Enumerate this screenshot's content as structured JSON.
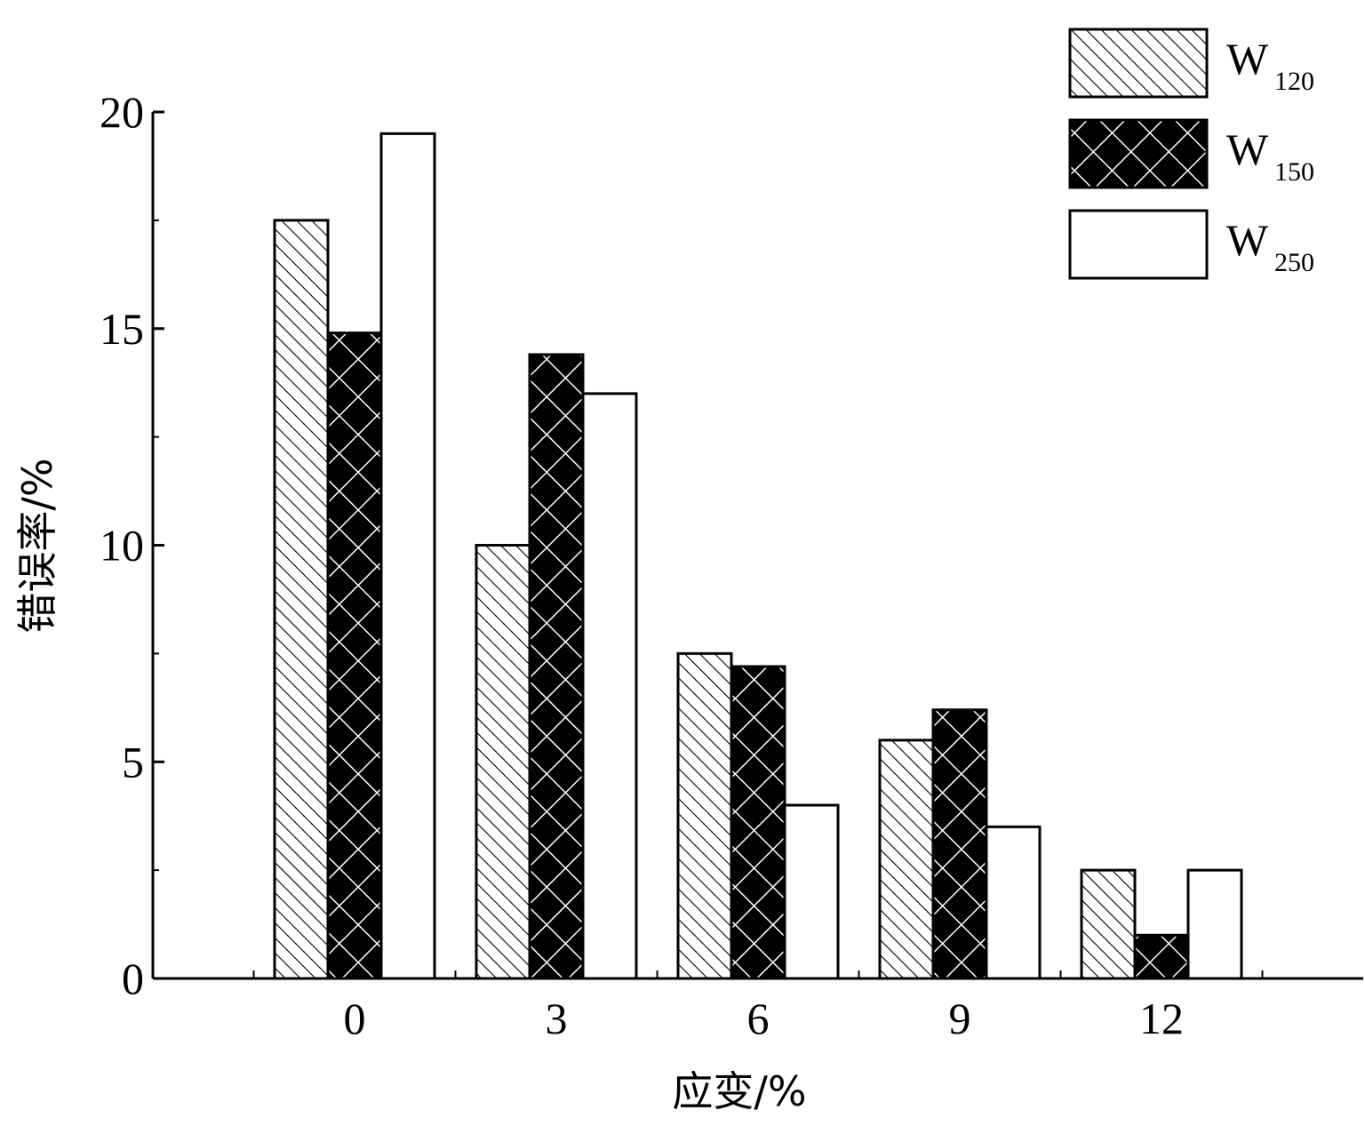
{
  "chart_data": {
    "type": "bar",
    "title": "",
    "xlabel": "应变/%",
    "ylabel": "错误率/%",
    "categories": [
      "0",
      "3",
      "6",
      "9",
      "12"
    ],
    "ylim": [
      0,
      20
    ],
    "yticks": [
      "0",
      "5",
      "10",
      "15",
      "20"
    ],
    "legend_position": "top-right",
    "grid": false,
    "series": [
      {
        "name_main": "W",
        "name_sub": "120",
        "pattern": "diagonal-hatch",
        "values": [
          17.5,
          10.0,
          7.5,
          5.5,
          2.5
        ]
      },
      {
        "name_main": "W",
        "name_sub": "150",
        "pattern": "black-crosshatch",
        "values": [
          14.9,
          14.4,
          7.2,
          6.2,
          1.0
        ]
      },
      {
        "name_main": "W",
        "name_sub": "250",
        "pattern": "white",
        "values": [
          19.5,
          13.5,
          4.0,
          3.5,
          2.5
        ]
      }
    ]
  }
}
